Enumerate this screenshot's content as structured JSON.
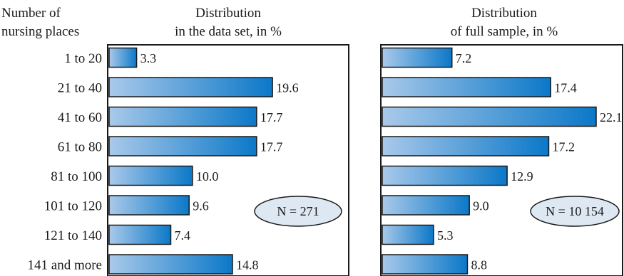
{
  "row_header": [
    "Number of",
    "nursing places"
  ],
  "colors": {
    "bar_light": "#a9c9ea",
    "bar_dark": "#0b78c8",
    "bar_stroke": "#1a1a1a",
    "ellipse_fill": "#dde8f3"
  },
  "chart_data": [
    {
      "type": "bar",
      "orientation": "horizontal",
      "title_lines": [
        "Distribution",
        "in the data set, in %"
      ],
      "categories": [
        "1 to 20",
        "21 to 40",
        "41 to 60",
        "61 to 80",
        "81 to 100",
        "101 to 120",
        "121 to 140",
        "141 and more"
      ],
      "values": [
        3.3,
        19.6,
        17.7,
        17.7,
        10.0,
        9.6,
        7.4,
        14.8
      ],
      "value_labels": [
        "3.3",
        "19.6",
        "17.7",
        "17.7",
        "10.0",
        "9.6",
        "7.4",
        "14.8"
      ],
      "annotation": "N = 271",
      "xlim": [
        0,
        22.5
      ],
      "grid": false
    },
    {
      "type": "bar",
      "orientation": "horizontal",
      "title_lines": [
        "Distribution",
        "of full sample, in %"
      ],
      "categories": [
        "1 to 20",
        "21 to 40",
        "41 to 60",
        "61 to 80",
        "81 to 100",
        "101 to 120",
        "121 to 140",
        "141 and more"
      ],
      "values": [
        7.2,
        17.4,
        22.1,
        17.2,
        12.9,
        9.0,
        5.3,
        8.8
      ],
      "value_labels": [
        "7.2",
        "17.4",
        "22.1",
        "17.2",
        "12.9",
        "9.0",
        "5.3",
        "8.8"
      ],
      "annotation": "N = 10 154",
      "xlim": [
        0,
        22.1
      ],
      "grid": false
    }
  ]
}
